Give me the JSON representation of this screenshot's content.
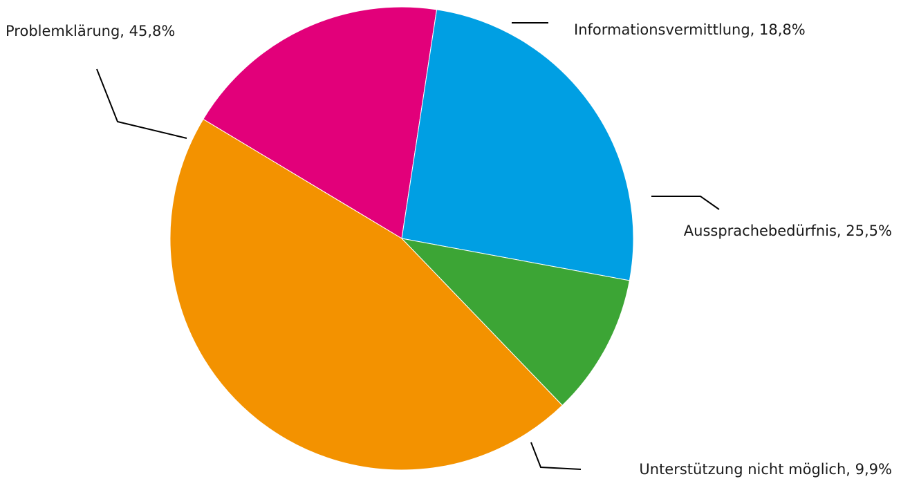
{
  "chart_data": {
    "type": "pie",
    "title": "",
    "slices": [
      {
        "label": "Informationsvermittlung, 18,8%",
        "name": "Informationsvermittlung",
        "value": 18.8,
        "color": "#E2007A"
      },
      {
        "label": "Aussprachebedürfnis, 25,5%",
        "name": "Aussprachebedürfnis",
        "value": 25.5,
        "color": "#009FE3"
      },
      {
        "label": "Unterstützung nicht möglich, 9,9%",
        "name": "Unterstützung nicht möglich",
        "value": 9.9,
        "color": "#3CA535"
      },
      {
        "label": "Problemklärung, 45,8%",
        "name": "Problemklärung",
        "value": 45.8,
        "color": "#F39200"
      }
    ]
  }
}
